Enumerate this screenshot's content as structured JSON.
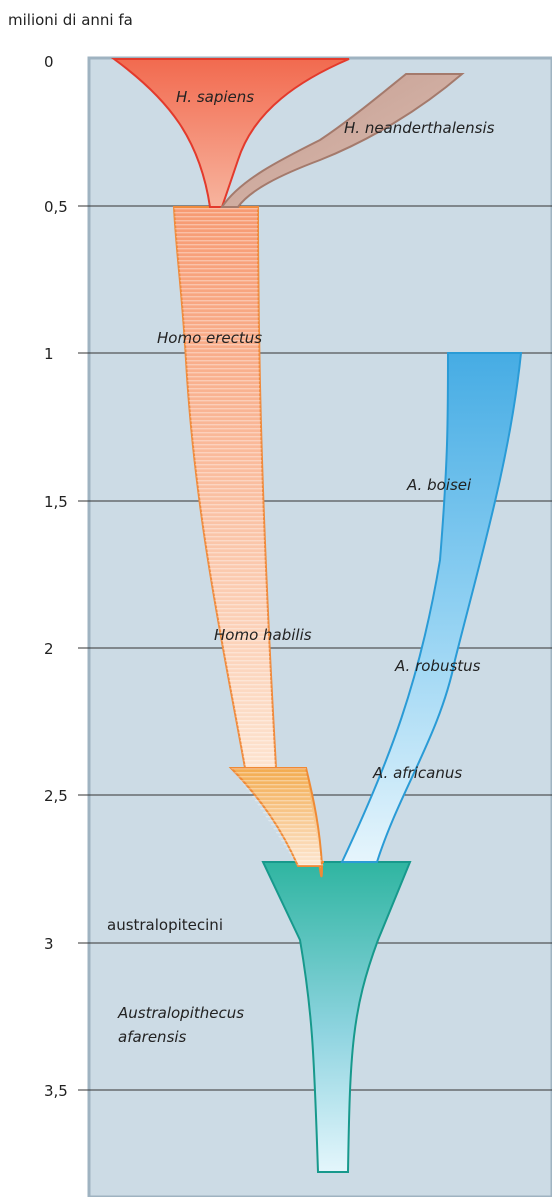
{
  "axis": {
    "title": "milioni di anni fa",
    "ticks": [
      "0",
      "0,5",
      "1",
      "1,5",
      "2",
      "2,5",
      "3",
      "3,5"
    ]
  },
  "species": {
    "sapiens": "H. sapiens",
    "neanderthalensis": "H. neanderthalensis",
    "erectus": "Homo erectus",
    "boisei": "A. boisei",
    "habilis": "Homo habilis",
    "robustus": "A. robustus",
    "africanus": "A. africanus",
    "afarensis_line1": "Australopithecus",
    "afarensis_line2": "afarensis"
  },
  "groups": {
    "australopithecines": "australopitecini"
  },
  "colors": {
    "panel": "#ccdbe5",
    "panel_border": "#9fb3c1",
    "sapiens": "#f2694e",
    "sapiens_stroke": "#e33a2c",
    "neanderthal": "#c9a69c",
    "neanderthal_stroke": "#a47a6c",
    "erectus": "#f7a17a",
    "erectus_stroke": "#f08a3c",
    "habilis": "#f4b15a",
    "habilis_stroke": "#ef8a35",
    "robust": "#56b8e8",
    "robust_stroke": "#2a9bd6",
    "afarensis": "#2cb3a0",
    "afarensis_stroke": "#17998c"
  }
}
